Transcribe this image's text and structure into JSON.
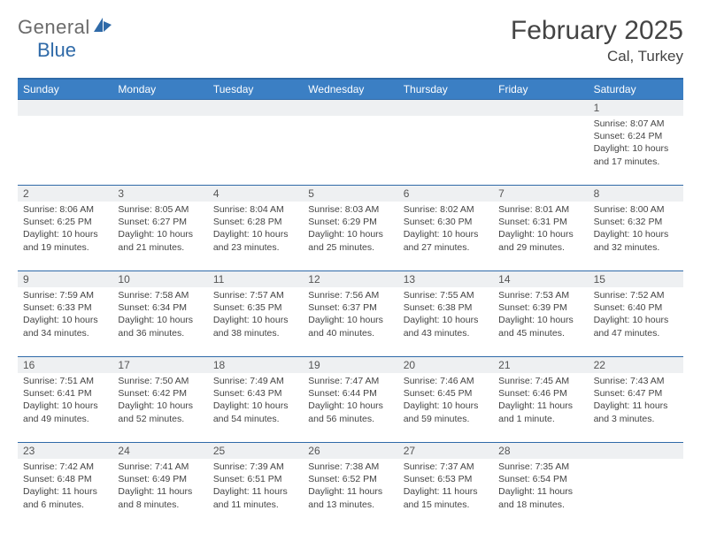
{
  "logo": {
    "text1": "General",
    "text2": "Blue",
    "color_gray": "#6b6b6b",
    "color_blue": "#2f6aa8"
  },
  "title": "February 2025",
  "location": "Cal, Turkey",
  "colors": {
    "header_bg": "#3b7fc4",
    "border": "#2f6aa8",
    "daynum_bg": "#eef0f2",
    "text": "#444444"
  },
  "day_names": [
    "Sunday",
    "Monday",
    "Tuesday",
    "Wednesday",
    "Thursday",
    "Friday",
    "Saturday"
  ],
  "weeks": [
    {
      "nums": [
        "",
        "",
        "",
        "",
        "",
        "",
        "1"
      ],
      "cells": [
        null,
        null,
        null,
        null,
        null,
        null,
        {
          "sr": "Sunrise: 8:07 AM",
          "ss": "Sunset: 6:24 PM",
          "dl": "Daylight: 10 hours and 17 minutes."
        }
      ]
    },
    {
      "nums": [
        "2",
        "3",
        "4",
        "5",
        "6",
        "7",
        "8"
      ],
      "cells": [
        {
          "sr": "Sunrise: 8:06 AM",
          "ss": "Sunset: 6:25 PM",
          "dl": "Daylight: 10 hours and 19 minutes."
        },
        {
          "sr": "Sunrise: 8:05 AM",
          "ss": "Sunset: 6:27 PM",
          "dl": "Daylight: 10 hours and 21 minutes."
        },
        {
          "sr": "Sunrise: 8:04 AM",
          "ss": "Sunset: 6:28 PM",
          "dl": "Daylight: 10 hours and 23 minutes."
        },
        {
          "sr": "Sunrise: 8:03 AM",
          "ss": "Sunset: 6:29 PM",
          "dl": "Daylight: 10 hours and 25 minutes."
        },
        {
          "sr": "Sunrise: 8:02 AM",
          "ss": "Sunset: 6:30 PM",
          "dl": "Daylight: 10 hours and 27 minutes."
        },
        {
          "sr": "Sunrise: 8:01 AM",
          "ss": "Sunset: 6:31 PM",
          "dl": "Daylight: 10 hours and 29 minutes."
        },
        {
          "sr": "Sunrise: 8:00 AM",
          "ss": "Sunset: 6:32 PM",
          "dl": "Daylight: 10 hours and 32 minutes."
        }
      ]
    },
    {
      "nums": [
        "9",
        "10",
        "11",
        "12",
        "13",
        "14",
        "15"
      ],
      "cells": [
        {
          "sr": "Sunrise: 7:59 AM",
          "ss": "Sunset: 6:33 PM",
          "dl": "Daylight: 10 hours and 34 minutes."
        },
        {
          "sr": "Sunrise: 7:58 AM",
          "ss": "Sunset: 6:34 PM",
          "dl": "Daylight: 10 hours and 36 minutes."
        },
        {
          "sr": "Sunrise: 7:57 AM",
          "ss": "Sunset: 6:35 PM",
          "dl": "Daylight: 10 hours and 38 minutes."
        },
        {
          "sr": "Sunrise: 7:56 AM",
          "ss": "Sunset: 6:37 PM",
          "dl": "Daylight: 10 hours and 40 minutes."
        },
        {
          "sr": "Sunrise: 7:55 AM",
          "ss": "Sunset: 6:38 PM",
          "dl": "Daylight: 10 hours and 43 minutes."
        },
        {
          "sr": "Sunrise: 7:53 AM",
          "ss": "Sunset: 6:39 PM",
          "dl": "Daylight: 10 hours and 45 minutes."
        },
        {
          "sr": "Sunrise: 7:52 AM",
          "ss": "Sunset: 6:40 PM",
          "dl": "Daylight: 10 hours and 47 minutes."
        }
      ]
    },
    {
      "nums": [
        "16",
        "17",
        "18",
        "19",
        "20",
        "21",
        "22"
      ],
      "cells": [
        {
          "sr": "Sunrise: 7:51 AM",
          "ss": "Sunset: 6:41 PM",
          "dl": "Daylight: 10 hours and 49 minutes."
        },
        {
          "sr": "Sunrise: 7:50 AM",
          "ss": "Sunset: 6:42 PM",
          "dl": "Daylight: 10 hours and 52 minutes."
        },
        {
          "sr": "Sunrise: 7:49 AM",
          "ss": "Sunset: 6:43 PM",
          "dl": "Daylight: 10 hours and 54 minutes."
        },
        {
          "sr": "Sunrise: 7:47 AM",
          "ss": "Sunset: 6:44 PM",
          "dl": "Daylight: 10 hours and 56 minutes."
        },
        {
          "sr": "Sunrise: 7:46 AM",
          "ss": "Sunset: 6:45 PM",
          "dl": "Daylight: 10 hours and 59 minutes."
        },
        {
          "sr": "Sunrise: 7:45 AM",
          "ss": "Sunset: 6:46 PM",
          "dl": "Daylight: 11 hours and 1 minute."
        },
        {
          "sr": "Sunrise: 7:43 AM",
          "ss": "Sunset: 6:47 PM",
          "dl": "Daylight: 11 hours and 3 minutes."
        }
      ]
    },
    {
      "nums": [
        "23",
        "24",
        "25",
        "26",
        "27",
        "28",
        ""
      ],
      "cells": [
        {
          "sr": "Sunrise: 7:42 AM",
          "ss": "Sunset: 6:48 PM",
          "dl": "Daylight: 11 hours and 6 minutes."
        },
        {
          "sr": "Sunrise: 7:41 AM",
          "ss": "Sunset: 6:49 PM",
          "dl": "Daylight: 11 hours and 8 minutes."
        },
        {
          "sr": "Sunrise: 7:39 AM",
          "ss": "Sunset: 6:51 PM",
          "dl": "Daylight: 11 hours and 11 minutes."
        },
        {
          "sr": "Sunrise: 7:38 AM",
          "ss": "Sunset: 6:52 PM",
          "dl": "Daylight: 11 hours and 13 minutes."
        },
        {
          "sr": "Sunrise: 7:37 AM",
          "ss": "Sunset: 6:53 PM",
          "dl": "Daylight: 11 hours and 15 minutes."
        },
        {
          "sr": "Sunrise: 7:35 AM",
          "ss": "Sunset: 6:54 PM",
          "dl": "Daylight: 11 hours and 18 minutes."
        },
        null
      ]
    }
  ]
}
